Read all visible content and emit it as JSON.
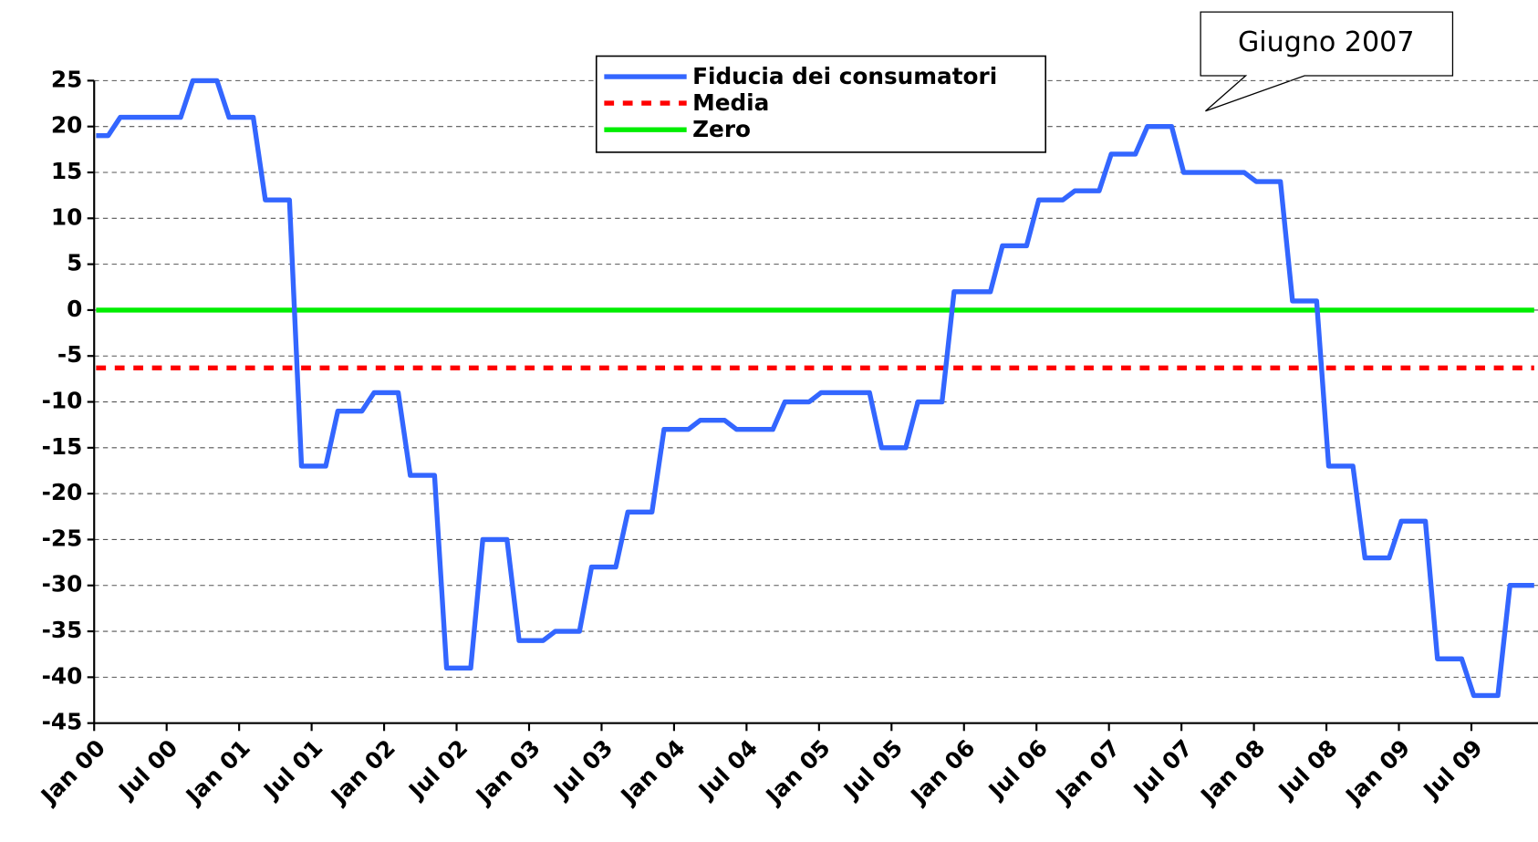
{
  "chart_data": {
    "type": "line",
    "categories": [
      "Jan 00",
      null,
      null,
      null,
      null,
      null,
      "Jul 00",
      null,
      null,
      null,
      null,
      null,
      "Jan 01",
      null,
      null,
      null,
      null,
      null,
      "Jul 01",
      null,
      null,
      null,
      null,
      null,
      "Jan 02",
      null,
      null,
      null,
      null,
      null,
      "Jul 02",
      null,
      null,
      null,
      null,
      null,
      "Jan 03",
      null,
      null,
      null,
      null,
      null,
      "Jul 03",
      null,
      null,
      null,
      null,
      null,
      "Jan 04",
      null,
      null,
      null,
      null,
      null,
      "Jul 04",
      null,
      null,
      null,
      null,
      null,
      "Jan 05",
      null,
      null,
      null,
      null,
      null,
      "Jul 05",
      null,
      null,
      null,
      null,
      null,
      "Jan 06",
      null,
      null,
      null,
      null,
      null,
      "Jul 06",
      null,
      null,
      null,
      null,
      null,
      "Jan 07",
      null,
      null,
      null,
      null,
      null,
      "Jul 07",
      null,
      null,
      null,
      null,
      null,
      "Jan 08",
      null,
      null,
      null,
      null,
      null,
      "Jul 08",
      null,
      null,
      null,
      null,
      null,
      "Jan 09",
      null,
      null,
      null,
      null,
      null,
      "Jul 09",
      null,
      null,
      null,
      null,
      null
    ],
    "series": [
      {
        "name": "Fiducia dei consumatori",
        "color": "#3366ff",
        "style": "solid",
        "values": [
          19,
          19,
          21,
          21,
          21,
          21,
          21,
          21,
          25,
          25,
          25,
          21,
          21,
          21,
          12,
          12,
          12,
          -17,
          -17,
          -17,
          -11,
          -11,
          -11,
          -9,
          -9,
          -9,
          -18,
          -18,
          -18,
          -39,
          -39,
          -39,
          -25,
          -25,
          -25,
          -36,
          -36,
          -36,
          -35,
          -35,
          -35,
          -28,
          -28,
          -28,
          -22,
          -22,
          -22,
          -13,
          -13,
          -13,
          -12,
          -12,
          -12,
          -13,
          -13,
          -13,
          -13,
          -10,
          -10,
          -10,
          -9,
          -9,
          -9,
          -9,
          -9,
          -15,
          -15,
          -15,
          -10,
          -10,
          -10,
          2,
          2,
          2,
          2,
          7,
          7,
          7,
          12,
          12,
          12,
          13,
          13,
          13,
          17,
          17,
          17,
          20,
          20,
          20,
          15,
          15,
          15,
          15,
          15,
          15,
          14,
          14,
          14,
          1,
          1,
          1,
          -17,
          -17,
          -17,
          -27,
          -27,
          -27,
          -23,
          -23,
          -23,
          -38,
          -38,
          -38,
          -42,
          -42,
          -42,
          -30,
          -30,
          -30
        ]
      },
      {
        "name": "Media",
        "color": "#ff0000",
        "style": "dashed",
        "values": [
          -6.3,
          -6.3,
          -6.3,
          -6.3,
          -6.3,
          -6.3,
          -6.3,
          -6.3,
          -6.3,
          -6.3,
          -6.3,
          -6.3,
          -6.3,
          -6.3,
          -6.3,
          -6.3,
          -6.3,
          -6.3,
          -6.3,
          -6.3,
          -6.3,
          -6.3,
          -6.3,
          -6.3,
          -6.3,
          -6.3,
          -6.3,
          -6.3,
          -6.3,
          -6.3,
          -6.3,
          -6.3,
          -6.3,
          -6.3,
          -6.3,
          -6.3,
          -6.3,
          -6.3,
          -6.3,
          -6.3,
          -6.3,
          -6.3,
          -6.3,
          -6.3,
          -6.3,
          -6.3,
          -6.3,
          -6.3,
          -6.3,
          -6.3,
          -6.3,
          -6.3,
          -6.3,
          -6.3,
          -6.3,
          -6.3,
          -6.3,
          -6.3,
          -6.3,
          -6.3,
          -6.3,
          -6.3,
          -6.3,
          -6.3,
          -6.3,
          -6.3,
          -6.3,
          -6.3,
          -6.3,
          -6.3,
          -6.3,
          -6.3,
          -6.3,
          -6.3,
          -6.3,
          -6.3,
          -6.3,
          -6.3,
          -6.3,
          -6.3,
          -6.3,
          -6.3,
          -6.3,
          -6.3,
          -6.3,
          -6.3,
          -6.3,
          -6.3,
          -6.3,
          -6.3,
          -6.3,
          -6.3,
          -6.3,
          -6.3,
          -6.3,
          -6.3,
          -6.3,
          -6.3,
          -6.3,
          -6.3,
          -6.3,
          -6.3,
          -6.3,
          -6.3,
          -6.3,
          -6.3,
          -6.3,
          -6.3,
          -6.3,
          -6.3,
          -6.3,
          -6.3,
          -6.3,
          -6.3,
          -6.3,
          -6.3,
          -6.3,
          -6.3,
          -6.3,
          -6.3
        ]
      },
      {
        "name": "Zero",
        "color": "#00ee00",
        "style": "solid",
        "values": [
          0,
          0,
          0,
          0,
          0,
          0,
          0,
          0,
          0,
          0,
          0,
          0,
          0,
          0,
          0,
          0,
          0,
          0,
          0,
          0,
          0,
          0,
          0,
          0,
          0,
          0,
          0,
          0,
          0,
          0,
          0,
          0,
          0,
          0,
          0,
          0,
          0,
          0,
          0,
          0,
          0,
          0,
          0,
          0,
          0,
          0,
          0,
          0,
          0,
          0,
          0,
          0,
          0,
          0,
          0,
          0,
          0,
          0,
          0,
          0,
          0,
          0,
          0,
          0,
          0,
          0,
          0,
          0,
          0,
          0,
          0,
          0,
          0,
          0,
          0,
          0,
          0,
          0,
          0,
          0,
          0,
          0,
          0,
          0,
          0,
          0,
          0,
          0,
          0,
          0,
          0,
          0,
          0,
          0,
          0,
          0,
          0,
          0,
          0,
          0,
          0,
          0,
          0,
          0,
          0,
          0,
          0,
          0,
          0,
          0,
          0,
          0,
          0,
          0,
          0,
          0,
          0,
          0,
          0,
          0
        ]
      }
    ],
    "ylim": [
      -45,
      25
    ],
    "yticks": [
      -45,
      -40,
      -35,
      -30,
      -25,
      -20,
      -15,
      -10,
      -5,
      0,
      5,
      10,
      15,
      20,
      25
    ],
    "grid": true,
    "legend": "top-center",
    "annotation": {
      "text": "Giugno 2007"
    }
  }
}
